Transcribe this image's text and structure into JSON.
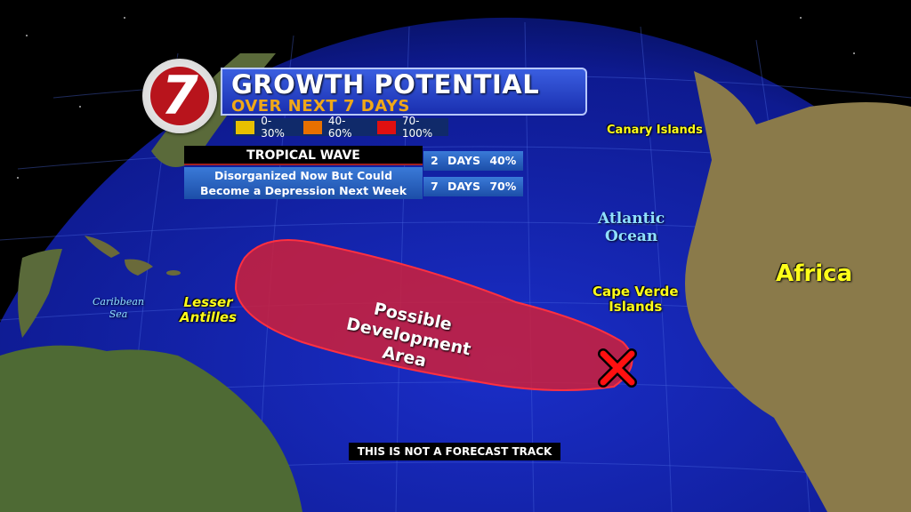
{
  "header": {
    "logo_text": "7",
    "title": "GROWTH POTENTIAL",
    "subtitle": "OVER NEXT 7 DAYS"
  },
  "legend": [
    {
      "label": "0-30%",
      "color": "#e8c000"
    },
    {
      "label": "40-60%",
      "color": "#e87000"
    },
    {
      "label": "70-100%",
      "color": "#e01010"
    }
  ],
  "system": {
    "name": "TROPICAL WAVE",
    "description_line1": "Disorganized Now But Could",
    "description_line2": "Become a Depression Next Week",
    "odds": [
      {
        "period": "2 DAYS",
        "chance": "40%"
      },
      {
        "period": "7 DAYS",
        "chance": "70%"
      }
    ]
  },
  "map": {
    "area_label_1": "Possible",
    "area_label_2": "Development",
    "area_label_3": "Area",
    "area_color": "#d0203a",
    "marker": "x-icon",
    "places": {
      "canary": "Canary Islands",
      "atlantic1": "Atlantic",
      "atlantic2": "Ocean",
      "africa": "Africa",
      "cape1": "Cape Verde",
      "cape2": "Islands",
      "lesser1": "Lesser",
      "lesser2": "Antilles",
      "carib1": "Caribbean",
      "carib2": "Sea"
    }
  },
  "disclaimer": "THIS IS NOT A FORECAST TRACK"
}
